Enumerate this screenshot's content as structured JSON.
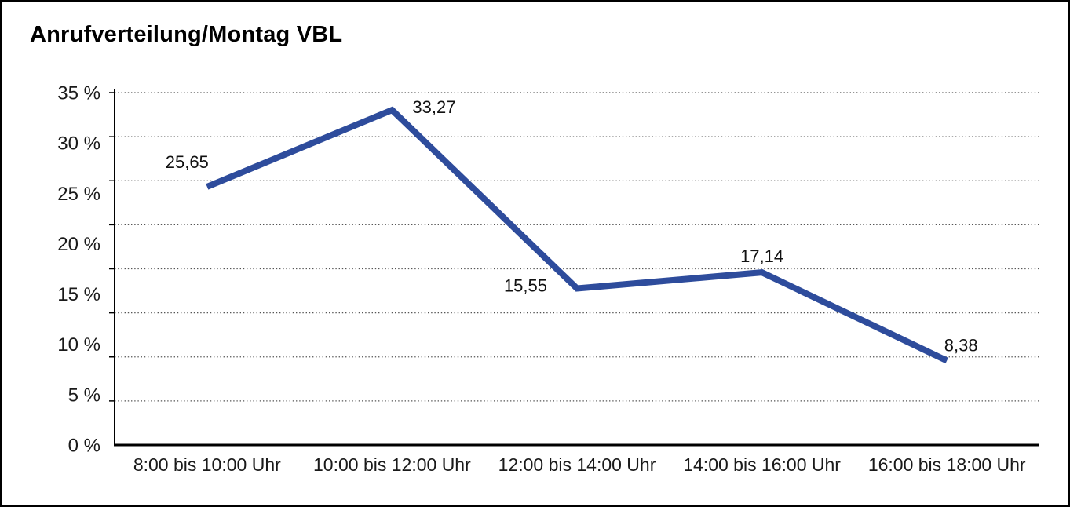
{
  "chart_data": {
    "type": "line",
    "title": "Anrufverteilung/Montag VBL",
    "categories": [
      "8:00 bis 10:00 Uhr",
      "10:00 bis 12:00 Uhr",
      "12:00 bis 14:00 Uhr",
      "14:00 bis 16:00 Uhr",
      "16:00 bis 18:00 Uhr"
    ],
    "values": [
      25.65,
      33.27,
      15.55,
      17.14,
      8.38
    ],
    "point_labels": [
      "25,65",
      "33,27",
      "15,55",
      "17,14",
      "8,38"
    ],
    "xlabel": "",
    "ylabel": "",
    "ylim": [
      0,
      35
    ],
    "yticks": [
      0,
      5,
      10,
      15,
      20,
      25,
      30,
      35
    ],
    "ytick_labels": [
      "0 %",
      "5 %",
      "10 %",
      "15 %",
      "20 %",
      "25 %",
      "30 %",
      "35 %"
    ],
    "grid": "horizontal-dotted",
    "gridline_divisions": 8,
    "legend": "none",
    "colors": {
      "line": "#2E4C9C",
      "grid": "#555555",
      "axis": "#000000",
      "text": "#1a1a1a"
    }
  }
}
